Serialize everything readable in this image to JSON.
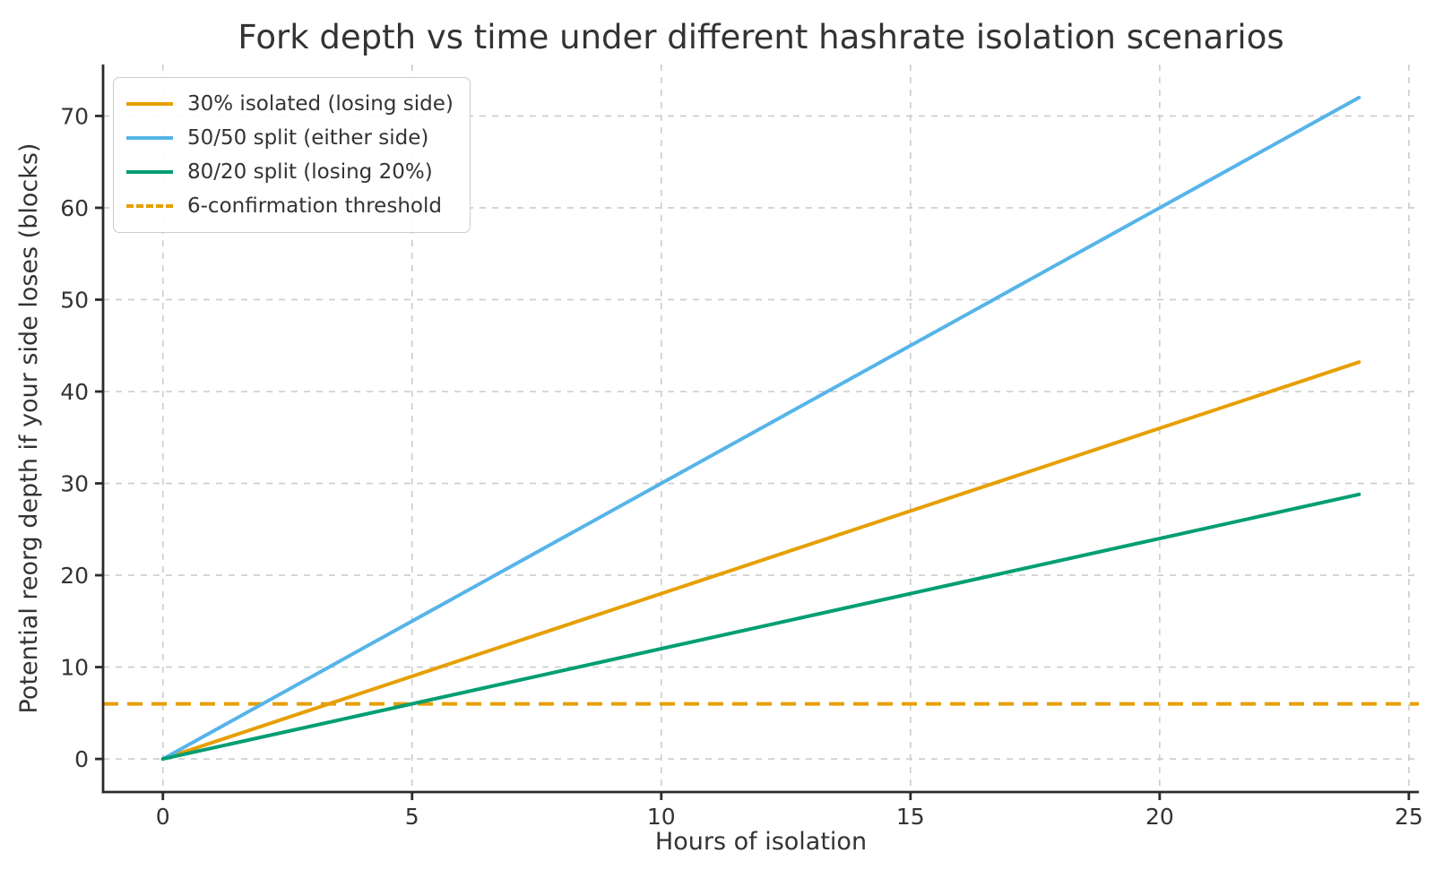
{
  "chart_data": {
    "type": "line",
    "title": "Fork depth vs time under different hashrate isolation scenarios",
    "xlabel": "Hours of isolation",
    "ylabel": "Potential reorg depth if your side loses (blocks)",
    "xlim": [
      -1.2,
      25.2
    ],
    "ylim": [
      -3.6,
      75.6
    ],
    "xticks": [
      0,
      5,
      10,
      15,
      20,
      25
    ],
    "yticks": [
      0,
      10,
      20,
      30,
      40,
      50,
      60,
      70
    ],
    "grid": true,
    "grid_style": "dashed",
    "legend_position": "upper-left",
    "x": [
      0,
      4,
      8,
      12,
      16,
      20,
      24
    ],
    "series": [
      {
        "name": "30% isolated (losing side)",
        "color": "#E69F00",
        "style": "solid",
        "values": [
          0,
          7.2,
          14.4,
          21.6,
          28.8,
          36.0,
          43.2
        ]
      },
      {
        "name": "50/50 split (either side)",
        "color": "#56B4E9",
        "style": "solid",
        "values": [
          0,
          12,
          24,
          36,
          48,
          60,
          72
        ]
      },
      {
        "name": "80/20 split (losing 20%)",
        "color": "#009E73",
        "style": "solid",
        "values": [
          0,
          4.8,
          9.6,
          14.4,
          19.2,
          24.0,
          28.8
        ]
      }
    ],
    "threshold": {
      "name": "6-confirmation threshold",
      "color": "#E69F00",
      "style": "dashed",
      "y": 6
    },
    "colors": {
      "text": "#333333",
      "spine": "#2b2b2b",
      "grid": "#cccccc",
      "background": "#ffffff"
    }
  }
}
